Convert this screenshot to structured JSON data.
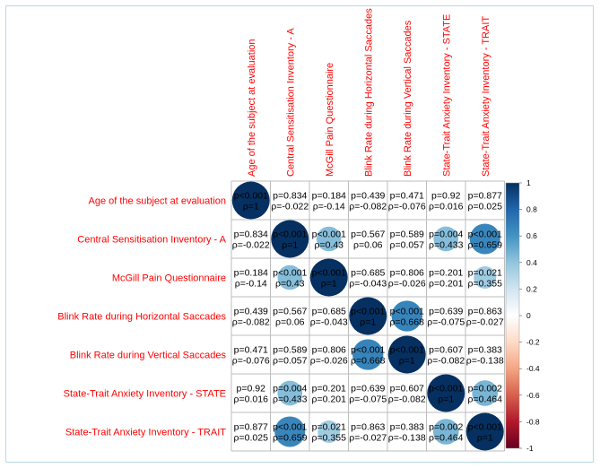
{
  "chart_data": {
    "type": "heatmap",
    "title": "",
    "variables": [
      "Age of the subject at evaluation",
      "Central Sensitisation Inventory - A",
      "McGill Pain Questionnaire",
      "Blink Rate during Horizontal Saccades",
      "Blink Rate during Vertical Saccades",
      "State-Trait Anxiety Inventory - STATE",
      "State-Trait Anxiety Inventory - TRAIT"
    ],
    "p_labels": [
      [
        "p<0.001",
        "p=0.834",
        "p=0.184",
        "p=0.439",
        "p=0.471",
        "p=0.92",
        "p=0.877"
      ],
      [
        "p=0.834",
        "p<0.001",
        "p<0.001",
        "p=0.567",
        "p=0.589",
        "p=0.004",
        "p<0.001"
      ],
      [
        "p=0.184",
        "p<0.001",
        "p<0.001",
        "p=0.685",
        "p=0.806",
        "p=0.201",
        "p=0.021"
      ],
      [
        "p=0.439",
        "p=0.567",
        "p=0.685",
        "p<0.001",
        "p<0.001",
        "p=0.639",
        "p=0.863"
      ],
      [
        "p=0.471",
        "p=0.589",
        "p=0.806",
        "p<0.001",
        "p<0.001",
        "p=0.607",
        "p=0.383"
      ],
      [
        "p=0.92",
        "p=0.004",
        "p=0.201",
        "p=0.639",
        "p=0.607",
        "p<0.001",
        "p=0.002"
      ],
      [
        "p=0.877",
        "p<0.001",
        "p=0.021",
        "p=0.863",
        "p=0.383",
        "p=0.002",
        "p<0.001"
      ]
    ],
    "rho_labels": [
      [
        "ρ=1",
        "ρ=-0.022",
        "ρ=-0.14",
        "ρ=-0.082",
        "ρ=-0.076",
        "ρ=0.016",
        "ρ=0.025"
      ],
      [
        "ρ=-0.022",
        "ρ=1",
        "ρ=0.43",
        "ρ=0.06",
        "ρ=0.057",
        "ρ=0.433",
        "ρ=0.659"
      ],
      [
        "ρ=-0.14",
        "ρ=0.43",
        "ρ=1",
        "ρ=-0.043",
        "ρ=-0.026",
        "ρ=0.201",
        "ρ=0.355"
      ],
      [
        "ρ=-0.082",
        "ρ=0.06",
        "ρ=-0.043",
        "ρ=1",
        "ρ=0.668",
        "ρ=-0.075",
        "ρ=-0.027"
      ],
      [
        "ρ=-0.076",
        "ρ=0.057",
        "ρ=-0.026",
        "ρ=0.668",
        "ρ=1",
        "ρ=-0.082",
        "ρ=-0.138"
      ],
      [
        "ρ=0.016",
        "ρ=0.433",
        "ρ=0.201",
        "ρ=-0.075",
        "ρ=-0.082",
        "ρ=1",
        "ρ=0.464"
      ],
      [
        "ρ=0.025",
        "ρ=0.659",
        "ρ=0.355",
        "ρ=-0.027",
        "ρ=-0.138",
        "ρ=0.464",
        "ρ=1"
      ]
    ],
    "rho": [
      [
        1,
        -0.022,
        -0.14,
        -0.082,
        -0.076,
        0.016,
        0.025
      ],
      [
        -0.022,
        1,
        0.43,
        0.06,
        0.057,
        0.433,
        0.659
      ],
      [
        -0.14,
        0.43,
        1,
        -0.043,
        -0.026,
        0.201,
        0.355
      ],
      [
        -0.082,
        0.06,
        -0.043,
        1,
        0.668,
        -0.075,
        -0.027
      ],
      [
        -0.076,
        0.057,
        -0.026,
        0.668,
        1,
        -0.082,
        -0.138
      ],
      [
        0.016,
        0.433,
        0.201,
        -0.075,
        -0.082,
        1,
        0.464
      ],
      [
        0.025,
        0.659,
        0.355,
        -0.027,
        -0.138,
        0.464,
        1
      ]
    ],
    "circles_shown_when": "p < 0.05",
    "colorbar": {
      "ticks": [
        "1",
        "0.8",
        "0.6",
        "0.4",
        "0.2",
        "0",
        "-0.2",
        "-0.4",
        "-0.6",
        "-0.8",
        "-1"
      ],
      "range": [
        -1,
        1
      ],
      "colors": [
        "#67001f",
        "#b2182b",
        "#d6604d",
        "#f4a582",
        "#fddbc7",
        "#ffffff",
        "#d1e5f0",
        "#92c5de",
        "#4393c3",
        "#2166ac",
        "#053061"
      ]
    },
    "label_color": "#ff0000",
    "grid": true
  }
}
